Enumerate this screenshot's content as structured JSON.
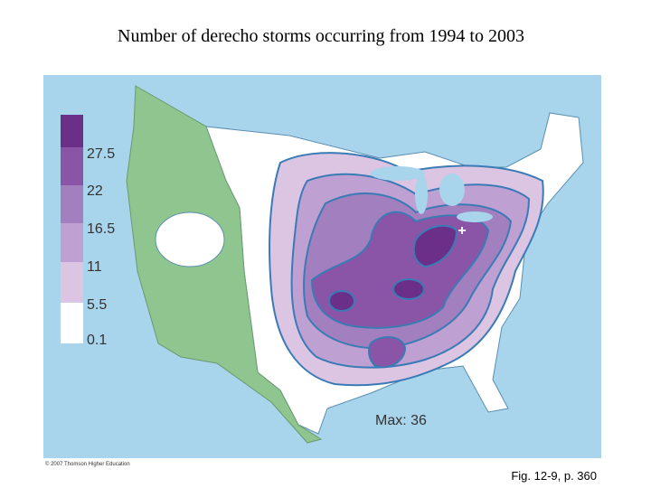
{
  "title": "Number of derecho storms occurring from 1994 to 2003",
  "legend": [
    "27.5",
    "22",
    "16.5",
    "11",
    "5.5",
    "0.1"
  ],
  "map": {
    "max_label": "Max: 36",
    "max_marker": "+"
  },
  "copyright": "© 2007 Thomson Higher Education",
  "caption": "Fig. 12-9, p. 360"
}
